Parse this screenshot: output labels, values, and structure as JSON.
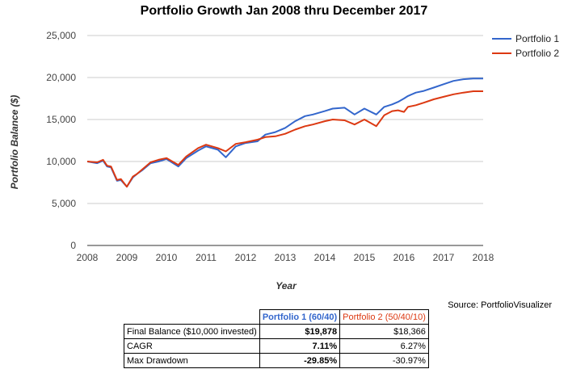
{
  "chart_data": {
    "type": "line",
    "title": "Portfolio Growth Jan 2008 thru December 2017",
    "xlabel": "Year",
    "ylabel": "Portfolio Balance ($)",
    "xlim": [
      2008,
      2018
    ],
    "ylim": [
      0,
      25000
    ],
    "x_ticks": [
      "2008",
      "2009",
      "2010",
      "2011",
      "2012",
      "2013",
      "2014",
      "2015",
      "2016",
      "2017",
      "2018"
    ],
    "y_ticks": [
      "0",
      "5,000",
      "10,000",
      "15,000",
      "20,000",
      "25,000"
    ],
    "grid": true,
    "legend_position": "top-right",
    "series": [
      {
        "name": "Portfolio 1",
        "color": "#3366cc",
        "x": [
          2008.0,
          2008.25,
          2008.4,
          2008.5,
          2008.6,
          2008.75,
          2008.85,
          2009.0,
          2009.15,
          2009.25,
          2009.4,
          2009.6,
          2009.8,
          2010.0,
          2010.3,
          2010.5,
          2010.8,
          2011.0,
          2011.3,
          2011.5,
          2011.75,
          2012.0,
          2012.3,
          2012.5,
          2012.75,
          2013.0,
          2013.25,
          2013.5,
          2013.7,
          2014.0,
          2014.2,
          2014.5,
          2014.75,
          2015.0,
          2015.3,
          2015.5,
          2015.7,
          2015.85,
          2016.0,
          2016.1,
          2016.3,
          2016.5,
          2016.75,
          2017.0,
          2017.25,
          2017.5,
          2017.75,
          2018.0
        ],
        "y": [
          10000,
          9800,
          10100,
          9400,
          9300,
          7700,
          7800,
          7000,
          8100,
          8500,
          9000,
          9800,
          10000,
          10300,
          9400,
          10400,
          11300,
          11800,
          11400,
          10500,
          11800,
          12200,
          12400,
          13200,
          13500,
          14000,
          14800,
          15400,
          15600,
          16000,
          16300,
          16400,
          15600,
          16300,
          15600,
          16500,
          16800,
          17100,
          17500,
          17800,
          18200,
          18400,
          18800,
          19200,
          19600,
          19800,
          19878,
          19878
        ]
      },
      {
        "name": "Portfolio 2",
        "color": "#dc3912",
        "x": [
          2008.0,
          2008.25,
          2008.4,
          2008.5,
          2008.6,
          2008.75,
          2008.85,
          2009.0,
          2009.15,
          2009.25,
          2009.4,
          2009.6,
          2009.8,
          2010.0,
          2010.3,
          2010.5,
          2010.8,
          2011.0,
          2011.3,
          2011.5,
          2011.75,
          2012.0,
          2012.3,
          2012.5,
          2012.75,
          2013.0,
          2013.25,
          2013.5,
          2013.7,
          2014.0,
          2014.2,
          2014.5,
          2014.75,
          2015.0,
          2015.3,
          2015.5,
          2015.7,
          2015.85,
          2016.0,
          2016.1,
          2016.3,
          2016.5,
          2016.75,
          2017.0,
          2017.25,
          2017.5,
          2017.75,
          2018.0
        ],
        "y": [
          10000,
          9900,
          10200,
          9500,
          9400,
          7800,
          7900,
          7000,
          8200,
          8500,
          9100,
          9900,
          10200,
          10400,
          9600,
          10600,
          11600,
          12000,
          11600,
          11200,
          12100,
          12300,
          12600,
          12900,
          13000,
          13300,
          13800,
          14200,
          14400,
          14800,
          15000,
          14900,
          14400,
          15000,
          14200,
          15500,
          16000,
          16100,
          15900,
          16500,
          16700,
          17000,
          17400,
          17700,
          18000,
          18200,
          18366,
          18366
        ]
      }
    ]
  },
  "source_text": "Source: PortfolioVisualizer",
  "table": {
    "headers": [
      "",
      "Portfolio 1 (60/40)",
      "Portfolio 2 (50/40/10)"
    ],
    "rows": [
      {
        "label": "Final Balance ($10,000 invested)",
        "p1": "$19,878",
        "p2": "$18,366"
      },
      {
        "label": "CAGR",
        "p1": "7.11%",
        "p2": "6.27%"
      },
      {
        "label": "Max Drawdown",
        "p1": "-29.85%",
        "p2": "-30.97%"
      }
    ]
  }
}
